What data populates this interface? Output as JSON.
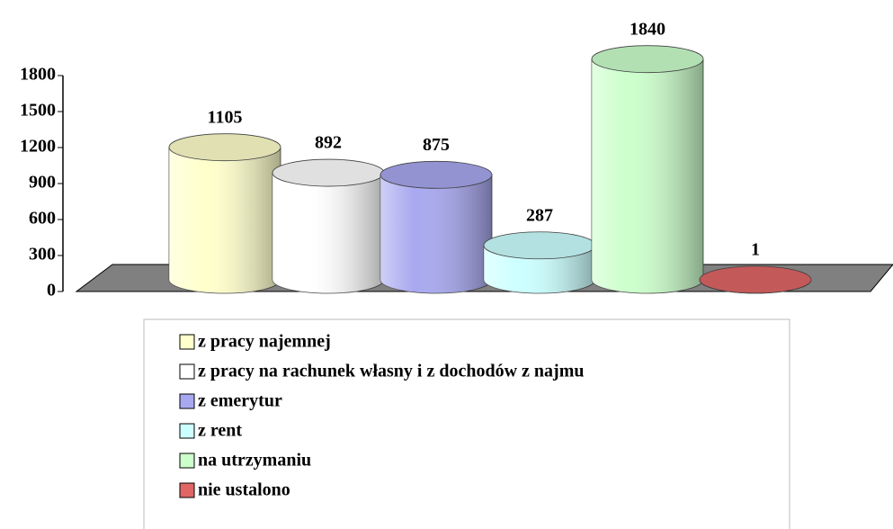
{
  "chart_data": {
    "type": "bar",
    "series": [
      {
        "name": "z pracy najemnej",
        "color": "#ffffcc",
        "values": [
          1105
        ]
      },
      {
        "name": "z pracy na rachunek własny i z dochodów z najmu",
        "color": "#ffffff",
        "values": [
          892
        ]
      },
      {
        "name": "z emerytur",
        "color": "#a8a8f0",
        "values": [
          875
        ]
      },
      {
        "name": "z rent",
        "color": "#ccffff",
        "values": [
          287
        ]
      },
      {
        "name": "na utrzymaniu",
        "color": "#ccffcc",
        "values": [
          1840
        ]
      },
      {
        "name": "nie ustalono",
        "color": "#e06666",
        "values": [
          1
        ]
      }
    ],
    "ylim": [
      0,
      1800
    ],
    "yticks": [
      0,
      300,
      600,
      900,
      1200,
      1500,
      1800
    ]
  }
}
